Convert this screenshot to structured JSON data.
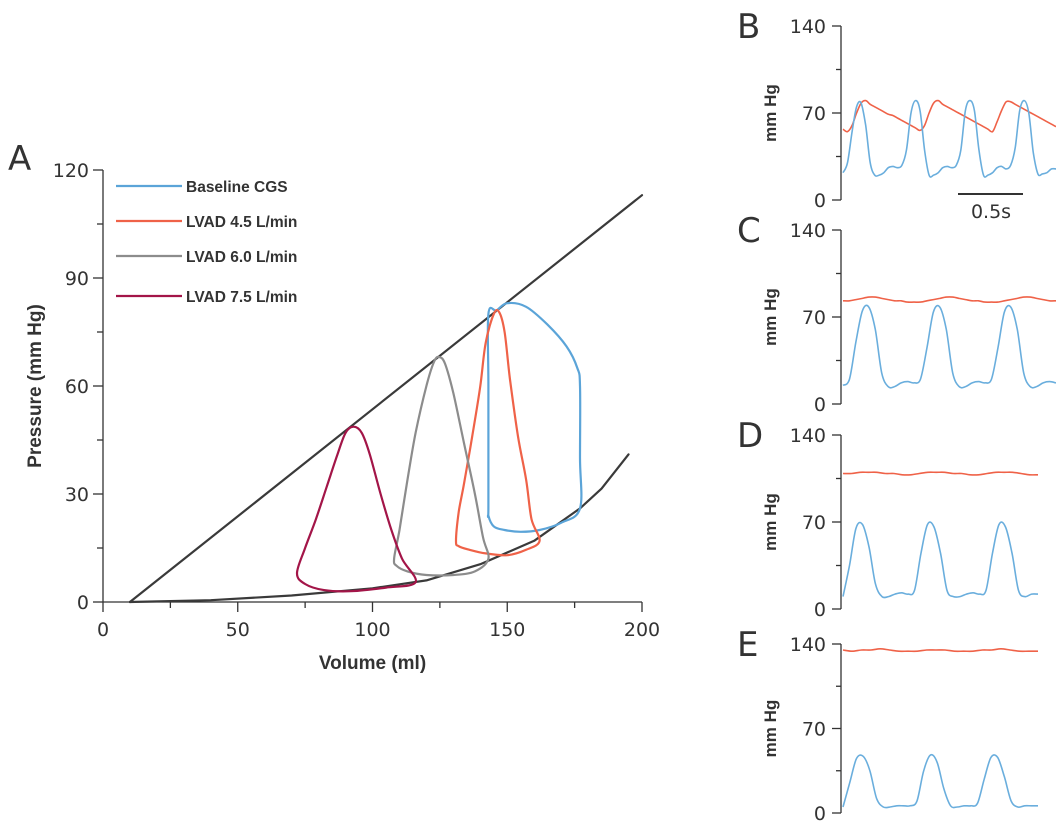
{
  "colors": {
    "baseline": "#5ba4d8",
    "lvad45": "#ef6248",
    "lvad60": "#8c8c8c",
    "lvad75": "#a31548",
    "aortic": "#ef6248",
    "lv": "#6aaedd",
    "axis": "#333333"
  },
  "chart_data": [
    {
      "panel": "A",
      "type": "line",
      "xlabel": "Volume (ml)",
      "ylabel": "Pressure (mm Hg)",
      "xlim": [
        0,
        200
      ],
      "ylim": [
        0,
        120
      ],
      "xticks": [
        0,
        50,
        100,
        150,
        200
      ],
      "yticks": [
        0,
        30,
        60,
        90,
        120
      ],
      "legend_position": "top-left",
      "series": [
        {
          "name": "Baseline CGS",
          "color_key": "baseline",
          "points": [
            [
              143,
              27
            ],
            [
              143,
              60
            ],
            [
              143,
              80
            ],
            [
              146,
              81
            ],
            [
              150,
              83
            ],
            [
              157,
              82
            ],
            [
              165,
              77
            ],
            [
              172,
              71
            ],
            [
              176,
              65
            ],
            [
              177,
              60
            ],
            [
              177,
              40
            ],
            [
              177,
              26
            ],
            [
              170,
              22
            ],
            [
              162,
              20
            ],
            [
              155,
              19.5
            ],
            [
              149,
              20
            ],
            [
              145,
              21
            ],
            [
              143,
              24
            ],
            [
              143,
              27
            ]
          ]
        },
        {
          "name": "LVAD 4.5 L/min",
          "color_key": "lvad45",
          "points": [
            [
              131,
              17
            ],
            [
              132,
              25
            ],
            [
              134,
              33
            ],
            [
              137,
              46
            ],
            [
              140,
              60
            ],
            [
              142,
              72
            ],
            [
              145,
              80
            ],
            [
              147,
              80.5
            ],
            [
              149,
              75
            ],
            [
              151,
              62
            ],
            [
              154,
              46
            ],
            [
              157,
              34
            ],
            [
              159,
              23
            ],
            [
              162,
              17
            ],
            [
              157,
              14.5
            ],
            [
              150,
              13
            ],
            [
              142,
              13.5
            ],
            [
              136,
              14.5
            ],
            [
              132,
              15.5
            ],
            [
              131,
              17
            ]
          ]
        },
        {
          "name": "LVAD 6.0 L/min",
          "color_key": "lvad60",
          "points": [
            [
              108,
              12
            ],
            [
              110,
              20
            ],
            [
              113,
              34
            ],
            [
              116,
              47
            ],
            [
              120,
              60
            ],
            [
              123,
              67
            ],
            [
              125,
              68
            ],
            [
              127,
              66
            ],
            [
              130,
              58
            ],
            [
              134,
              44
            ],
            [
              138,
              30
            ],
            [
              141,
              18
            ],
            [
              143,
              12
            ],
            [
              138,
              8.5
            ],
            [
              130,
              7.5
            ],
            [
              120,
              7.5
            ],
            [
              113,
              8.5
            ],
            [
              109,
              10
            ],
            [
              108,
              12
            ]
          ]
        },
        {
          "name": "LVAD 7.5 L/min",
          "color_key": "lvad75",
          "points": [
            [
              72,
              8
            ],
            [
              75,
              15
            ],
            [
              79,
              23
            ],
            [
              83,
              32
            ],
            [
              87,
              41
            ],
            [
              90,
              47
            ],
            [
              93,
              48.7
            ],
            [
              96,
              47
            ],
            [
              99,
              41
            ],
            [
              103,
              30
            ],
            [
              107,
              20
            ],
            [
              111,
              12
            ],
            [
              116,
              5.5
            ],
            [
              105,
              4
            ],
            [
              92,
              3
            ],
            [
              82,
              3.3
            ],
            [
              75,
              5
            ],
            [
              72,
              8
            ]
          ]
        }
      ],
      "reference_lines": [
        {
          "name": "ESPVR",
          "points": [
            [
              10,
              0
            ],
            [
              200,
              113
            ]
          ]
        },
        {
          "name": "EDPVR",
          "points": [
            [
              10,
              0
            ],
            [
              40,
              0.5
            ],
            [
              70,
              1.8
            ],
            [
              100,
              3.8
            ],
            [
              120,
              6
            ],
            [
              140,
              10.5
            ],
            [
              160,
              17
            ],
            [
              177,
              26
            ],
            [
              185,
              31.5
            ],
            [
              195,
              41
            ]
          ]
        }
      ]
    },
    {
      "panel": "B",
      "type": "line",
      "ylabel": "mm Hg",
      "ylim": [
        0,
        140
      ],
      "yticks": [
        0,
        70,
        140
      ],
      "scale_bar": "0.5s",
      "series": [
        {
          "color_key": "aortic",
          "values": [
            57,
            55,
            60,
            70,
            78,
            80,
            77,
            75,
            73,
            71,
            69,
            68,
            66,
            64,
            62,
            60,
            58,
            56,
            60,
            70,
            78,
            80,
            77,
            75,
            73,
            71,
            69,
            67,
            65,
            63,
            61,
            59,
            57,
            55,
            63,
            72,
            79,
            79,
            77,
            75,
            73,
            71,
            69,
            67,
            65,
            63,
            61,
            59
          ]
        },
        {
          "color_key": "lv",
          "values": [
            22,
            30,
            55,
            75,
            78,
            60,
            30,
            20,
            20,
            22,
            26,
            27,
            26,
            28,
            40,
            70,
            80,
            72,
            40,
            20,
            20,
            22,
            26,
            27,
            26,
            28,
            40,
            72,
            80,
            72,
            40,
            20,
            20,
            22,
            26,
            27,
            25,
            28,
            42,
            72,
            80,
            70,
            38,
            21,
            21,
            22,
            25,
            25
          ]
        }
      ]
    },
    {
      "panel": "C",
      "type": "line",
      "ylabel": "mm Hg",
      "ylim": [
        0,
        140
      ],
      "yticks": [
        0,
        70,
        140
      ],
      "series": [
        {
          "color_key": "aortic",
          "values": [
            83,
            83,
            84,
            85,
            86,
            86,
            85,
            84,
            83,
            83,
            82,
            82,
            82,
            83,
            84,
            85,
            86,
            86,
            85,
            84,
            83,
            83,
            82,
            82,
            82,
            83,
            84,
            85,
            86,
            86,
            85,
            84,
            83,
            83
          ]
        },
        {
          "color_key": "lv",
          "values": [
            15,
            20,
            50,
            75,
            78,
            60,
            25,
            14,
            14,
            17,
            18,
            17,
            20,
            45,
            74,
            78,
            60,
            25,
            14,
            14,
            17,
            18,
            17,
            20,
            45,
            74,
            78,
            60,
            25,
            14,
            14,
            17,
            18,
            17
          ]
        }
      ]
    },
    {
      "panel": "D",
      "type": "line",
      "ylabel": "mm Hg",
      "ylim": [
        0,
        140
      ],
      "yticks": [
        0,
        70,
        140
      ],
      "series": [
        {
          "color_key": "aortic",
          "values": [
            109,
            109,
            110,
            110,
            110,
            109,
            109,
            108,
            108,
            109,
            110,
            110,
            110,
            109,
            109,
            108,
            108,
            109,
            110,
            110,
            110,
            109,
            108,
            108
          ]
        },
        {
          "color_key": "lv",
          "values": [
            10,
            35,
            65,
            68,
            50,
            20,
            10,
            10,
            12,
            13,
            12,
            15,
            45,
            68,
            66,
            45,
            15,
            10,
            10,
            12,
            13,
            12,
            15,
            45,
            68,
            66,
            45,
            15,
            10,
            12,
            12
          ]
        }
      ]
    },
    {
      "panel": "E",
      "type": "line",
      "ylabel": "mm Hg",
      "ylim": [
        0,
        140
      ],
      "yticks": [
        0,
        70,
        140
      ],
      "series": [
        {
          "color_key": "aortic",
          "values": [
            135,
            134,
            135,
            135,
            136,
            135,
            134,
            134,
            134,
            135,
            135,
            135,
            134,
            134,
            134,
            135,
            135,
            136,
            135,
            134,
            134,
            134
          ]
        },
        {
          "color_key": "lv",
          "values": [
            5,
            25,
            45,
            47,
            35,
            12,
            5,
            5,
            6,
            6,
            6,
            10,
            35,
            48,
            42,
            20,
            6,
            5,
            6,
            6,
            8,
            28,
            46,
            46,
            30,
            10,
            5,
            6,
            6,
            6
          ]
        }
      ]
    }
  ],
  "text": {
    "panel_a": "A",
    "panel_b": "B",
    "panel_c": "C",
    "panel_d": "D",
    "panel_e": "E",
    "a_xlabel": "Volume (ml)",
    "a_ylabel": "Pressure (mm Hg)",
    "a_xticks": [
      "0",
      "50",
      "100",
      "150",
      "200"
    ],
    "a_yticks": [
      "0",
      "30",
      "60",
      "90",
      "120"
    ],
    "legend": [
      "Baseline CGS",
      "LVAD 4.5 L/min",
      "LVAD 6.0 L/min",
      "LVAD 7.5 L/min"
    ],
    "small_ylabel": "mm Hg",
    "small_yticks": [
      "0",
      "70",
      "140"
    ],
    "scale_bar": "0.5s"
  }
}
